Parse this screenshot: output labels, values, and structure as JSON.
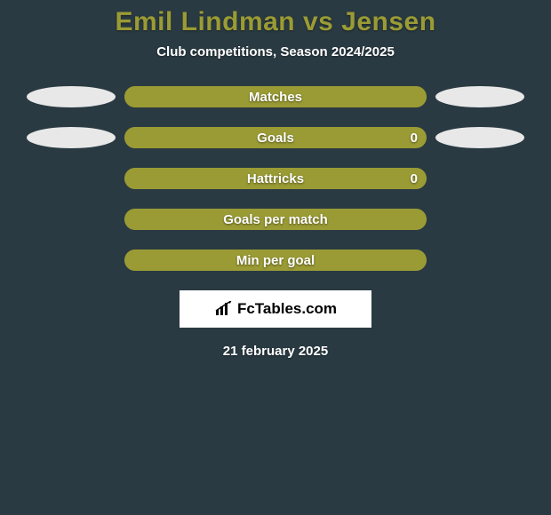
{
  "background_color": "#2a3a42",
  "title": {
    "text": "Emil Lindman vs Jensen",
    "color": "#9a9b34",
    "fontsize": 30,
    "fontweight": 800
  },
  "subtitle": {
    "text": "Club competitions, Season 2024/2025",
    "color": "#ffffff",
    "fontsize": 15
  },
  "ellipse_colors": {
    "left": "#e8e8e8",
    "right": "#e8e8e8"
  },
  "bar_style": {
    "track_color": "#9a9b34",
    "fill_color": "#9a9b34",
    "border_radius": 12,
    "label_color": "#ffffff",
    "label_fontsize": 15
  },
  "stats": [
    {
      "label": "Matches",
      "show_left_ellipse": true,
      "show_right_ellipse": true,
      "right_value": "",
      "fill_pct": 100
    },
    {
      "label": "Goals",
      "show_left_ellipse": true,
      "show_right_ellipse": true,
      "right_value": "0",
      "fill_pct": 96
    },
    {
      "label": "Hattricks",
      "show_left_ellipse": false,
      "show_right_ellipse": false,
      "right_value": "0",
      "fill_pct": 100
    },
    {
      "label": "Goals per match",
      "show_left_ellipse": false,
      "show_right_ellipse": false,
      "right_value": "",
      "fill_pct": 100
    },
    {
      "label": "Min per goal",
      "show_left_ellipse": false,
      "show_right_ellipse": false,
      "right_value": "",
      "fill_pct": 100
    }
  ],
  "logo": {
    "text": "FcTables.com",
    "box_bg": "#ffffff",
    "text_color": "#000000",
    "fontsize": 17
  },
  "date": {
    "text": "21 february 2025",
    "color": "#ffffff",
    "fontsize": 15
  }
}
